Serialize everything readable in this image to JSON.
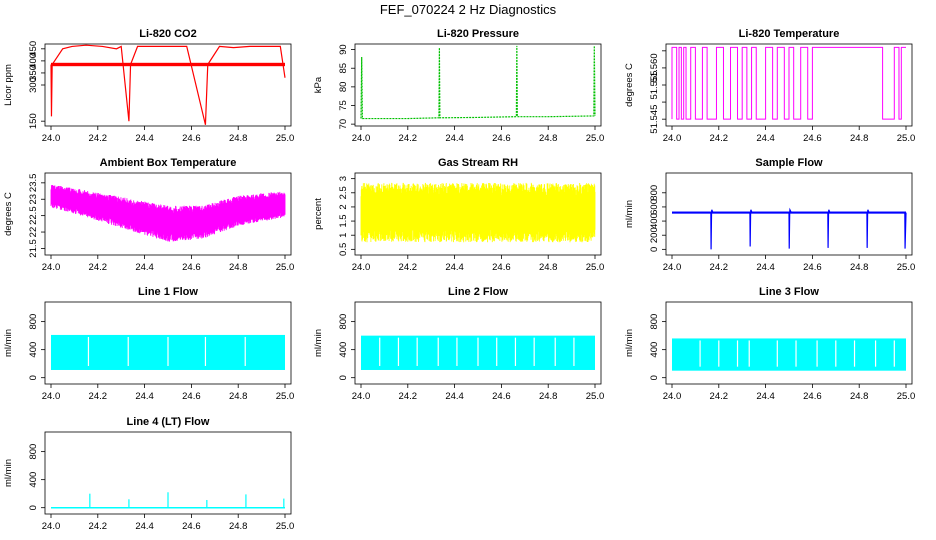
{
  "page_title": "FEF_070224  2 Hz Diagnostics",
  "colors": {
    "red": "#ff0000",
    "green": "#00c000",
    "magenta": "#ff00ff",
    "yellow": "#ffff00",
    "blue": "#0000ff",
    "cyan": "#00ffff",
    "axis": "#000000"
  },
  "chart_data": [
    {
      "type": "line",
      "title": "Li-820 CO2",
      "ylabel": "Licor ppm",
      "color": "red",
      "xlim": [
        24.0,
        25.0
      ],
      "x_ticks": [
        "24.0",
        "24.2",
        "24.4",
        "24.6",
        "24.8",
        "25.0"
      ],
      "ylim": [
        130,
        470
      ],
      "y_ticks": [
        150,
        300,
        350,
        400,
        450
      ],
      "series": [
        {
          "name": "CO2",
          "pattern": "band",
          "baseline": 385,
          "band_low": 378,
          "band_high": 392,
          "points": [
            [
              24.0,
              385
            ],
            [
              24.002,
              170
            ],
            [
              24.005,
              385
            ],
            [
              24.05,
              450
            ],
            [
              24.09,
              460
            ],
            [
              24.15,
              465
            ],
            [
              24.22,
              460
            ],
            [
              24.28,
              450
            ],
            [
              24.3,
              460
            ],
            [
              24.333,
              150
            ],
            [
              24.34,
              385
            ],
            [
              24.37,
              460
            ],
            [
              24.45,
              460
            ],
            [
              24.52,
              460
            ],
            [
              24.58,
              460
            ],
            [
              24.66,
              135
            ],
            [
              24.67,
              385
            ],
            [
              24.72,
              460
            ],
            [
              24.78,
              455
            ],
            [
              24.85,
              460
            ],
            [
              24.92,
              460
            ],
            [
              24.98,
              460
            ],
            [
              25.0,
              330
            ]
          ]
        }
      ]
    },
    {
      "type": "line",
      "title": "Li-820 Pressure",
      "ylabel": "kPa",
      "color": "green",
      "xlim": [
        24.0,
        25.0
      ],
      "x_ticks": [
        "24.0",
        "24.2",
        "24.4",
        "24.6",
        "24.8",
        "25.0"
      ],
      "ylim": [
        69.5,
        91.5
      ],
      "y_ticks": [
        70,
        75,
        80,
        85,
        90
      ],
      "series": [
        {
          "name": "Pressure",
          "pattern": "step",
          "points": [
            [
              24.0,
              71.5
            ],
            [
              24.003,
              88.0
            ],
            [
              24.006,
              71.5
            ],
            [
              24.2,
              71.5
            ],
            [
              24.333,
              71.7
            ],
            [
              24.335,
              90.5
            ],
            [
              24.337,
              71.7
            ],
            [
              24.5,
              71.8
            ],
            [
              24.664,
              72.0
            ],
            [
              24.666,
              91.0
            ],
            [
              24.668,
              72.0
            ],
            [
              24.8,
              72.0
            ],
            [
              24.995,
              72.2
            ],
            [
              24.997,
              91.0
            ],
            [
              25.0,
              72.2
            ]
          ]
        }
      ]
    },
    {
      "type": "line",
      "title": "Li-820 Temperature",
      "ylabel": "degrees C",
      "color": "magenta",
      "xlim": [
        24.0,
        25.0
      ],
      "x_ticks": [
        "24.0",
        "24.2",
        "24.4",
        "24.6",
        "24.8",
        "25.0"
      ],
      "ylim": [
        51.543,
        51.567
      ],
      "y_ticks": [
        51.545,
        51.55,
        51.555,
        51.56,
        51.565
      ],
      "y_tick_labels": [
        "51.545",
        "",
        "51.555",
        "51.560",
        ""
      ],
      "series": [
        {
          "name": "Temperature",
          "pattern": "toggle",
          "low": 51.545,
          "high": 51.566,
          "toggles": [
            24.0,
            24.02,
            24.03,
            24.04,
            24.05,
            24.06,
            24.08,
            24.1,
            24.13,
            24.15,
            24.19,
            24.22,
            24.25,
            24.28,
            24.3,
            24.32,
            24.34,
            24.36,
            24.4,
            24.43,
            24.45,
            24.48,
            24.5,
            24.52,
            24.55,
            24.58,
            24.6,
            24.9,
            24.95,
            24.97,
            24.98
          ]
        }
      ]
    },
    {
      "type": "line",
      "title": "Ambient Box Temperature",
      "ylabel": "degrees C",
      "color": "magenta",
      "xlim": [
        24.0,
        25.0
      ],
      "x_ticks": [
        "24.0",
        "24.2",
        "24.4",
        "24.6",
        "24.8",
        "25.0"
      ],
      "ylim": [
        21.3,
        23.8
      ],
      "y_ticks": [
        21.5,
        22.0,
        22.5,
        23.0,
        23.5
      ],
      "series": [
        {
          "name": "Box temperature",
          "pattern": "noise",
          "center": [
            [
              24.0,
              23.1
            ],
            [
              24.1,
              22.95
            ],
            [
              24.3,
              22.6
            ],
            [
              24.5,
              22.25
            ],
            [
              24.65,
              22.3
            ],
            [
              24.8,
              22.65
            ],
            [
              25.0,
              22.85
            ]
          ],
          "half_width": [
            [
              24.0,
              0.35
            ],
            [
              24.5,
              0.55
            ],
            [
              25.0,
              0.4
            ]
          ]
        }
      ]
    },
    {
      "type": "line",
      "title": "Gas Stream RH",
      "ylabel": "percent",
      "color": "yellow",
      "xlim": [
        24.0,
        25.0
      ],
      "x_ticks": [
        "24.0",
        "24.2",
        "24.4",
        "24.6",
        "24.8",
        "25.0"
      ],
      "ylim": [
        0.3,
        3.2
      ],
      "y_ticks": [
        0.5,
        1.0,
        1.5,
        2.0,
        2.5,
        3.0
      ],
      "series": [
        {
          "name": "RH",
          "pattern": "noise",
          "center": [
            [
              24.0,
              1.8
            ],
            [
              25.0,
              1.8
            ]
          ],
          "half_width": [
            [
              24.0,
              1.05
            ],
            [
              25.0,
              1.05
            ]
          ]
        }
      ]
    },
    {
      "type": "line",
      "title": "Sample Flow",
      "ylabel": "ml/min",
      "color": "blue",
      "xlim": [
        24.0,
        25.0
      ],
      "x_ticks": [
        "24.0",
        "24.2",
        "24.4",
        "24.6",
        "24.8",
        "25.0"
      ],
      "ylim": [
        -80,
        1080
      ],
      "y_ticks": [
        0,
        200,
        400,
        600,
        800
      ],
      "y_tick_labels": [
        "0",
        "200",
        "400",
        "600",
        "800"
      ],
      "series": [
        {
          "name": "Sample flow",
          "pattern": "band",
          "baseline": 520,
          "band_low": 505,
          "band_high": 535,
          "points": [
            [
              24.0,
              520
            ],
            [
              24.166,
              520
            ],
            [
              24.167,
              0
            ],
            [
              24.169,
              520
            ],
            [
              24.17,
              560
            ],
            [
              24.175,
              520
            ],
            [
              24.333,
              520
            ],
            [
              24.334,
              40
            ],
            [
              24.336,
              520
            ],
            [
              24.337,
              560
            ],
            [
              24.342,
              520
            ],
            [
              24.5,
              520
            ],
            [
              24.501,
              10
            ],
            [
              24.503,
              520
            ],
            [
              24.504,
              560
            ],
            [
              24.51,
              520
            ],
            [
              24.666,
              520
            ],
            [
              24.667,
              20
            ],
            [
              24.669,
              520
            ],
            [
              24.67,
              560
            ],
            [
              24.675,
              520
            ],
            [
              24.833,
              520
            ],
            [
              24.834,
              20
            ],
            [
              24.836,
              520
            ],
            [
              24.837,
              560
            ],
            [
              24.842,
              520
            ],
            [
              24.995,
              520
            ],
            [
              24.996,
              10
            ],
            [
              25.0,
              520
            ]
          ]
        }
      ]
    },
    {
      "type": "line",
      "title": "Line 1 Flow",
      "ylabel": "ml/min",
      "color": "cyan",
      "xlim": [
        24.0,
        25.0
      ],
      "x_ticks": [
        "24.0",
        "24.2",
        "24.4",
        "24.6",
        "24.8",
        "25.0"
      ],
      "ylim": [
        -90,
        1080
      ],
      "y_ticks": [
        0,
        400,
        800
      ],
      "y_tick_labels": [
        "0",
        "400",
        "800"
      ],
      "series": [
        {
          "name": "Line 1",
          "pattern": "block",
          "low": 110,
          "high": 610,
          "gaps": [
            24.16,
            24.33,
            24.5,
            24.66,
            24.83
          ]
        }
      ]
    },
    {
      "type": "line",
      "title": "Line 2 Flow",
      "ylabel": "ml/min",
      "color": "cyan",
      "xlim": [
        24.0,
        25.0
      ],
      "x_ticks": [
        "24.0",
        "24.2",
        "24.4",
        "24.6",
        "24.8",
        "25.0"
      ],
      "ylim": [
        -90,
        1080
      ],
      "y_ticks": [
        0,
        400,
        800
      ],
      "y_tick_labels": [
        "0",
        "400",
        "800"
      ],
      "series": [
        {
          "name": "Line 2",
          "pattern": "block",
          "low": 110,
          "high": 600,
          "gaps": [
            24.08,
            24.16,
            24.24,
            24.33,
            24.41,
            24.5,
            24.58,
            24.66,
            24.74,
            24.83,
            24.91
          ]
        }
      ]
    },
    {
      "type": "line",
      "title": "Line 3 Flow",
      "ylabel": "ml/min",
      "color": "cyan",
      "xlim": [
        24.0,
        25.0
      ],
      "x_ticks": [
        "24.0",
        "24.2",
        "24.4",
        "24.6",
        "24.8",
        "25.0"
      ],
      "ylim": [
        -90,
        1080
      ],
      "y_ticks": [
        0,
        400,
        800
      ],
      "y_tick_labels": [
        "0",
        "400",
        "800"
      ],
      "series": [
        {
          "name": "Line 3",
          "pattern": "block",
          "low": 100,
          "high": 560,
          "gaps": [
            24.12,
            24.2,
            24.28,
            24.33,
            24.45,
            24.53,
            24.62,
            24.7,
            24.78,
            24.87,
            24.95
          ]
        }
      ]
    },
    {
      "type": "line",
      "title": "Line 4 (LT) Flow",
      "ylabel": "ml/min",
      "color": "cyan",
      "xlim": [
        24.0,
        25.0
      ],
      "x_ticks": [
        "24.0",
        "24.2",
        "24.4",
        "24.6",
        "24.8",
        "25.0"
      ],
      "ylim": [
        -90,
        1080
      ],
      "y_ticks": [
        0,
        400,
        800
      ],
      "y_tick_labels": [
        "0",
        "400",
        "800"
      ],
      "series": [
        {
          "name": "Line 4",
          "pattern": "spikes",
          "baseline": 0,
          "spikes": [
            [
              24.166,
              200
            ],
            [
              24.333,
              120
            ],
            [
              24.5,
              220
            ],
            [
              24.666,
              110
            ],
            [
              24.833,
              190
            ],
            [
              24.995,
              130
            ]
          ]
        }
      ]
    }
  ]
}
